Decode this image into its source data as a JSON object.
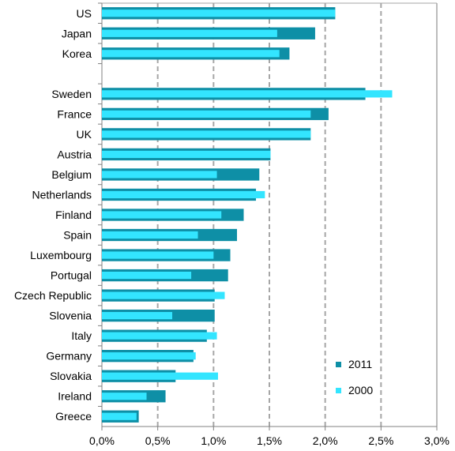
{
  "chart_data": {
    "type": "bar",
    "orientation": "horizontal",
    "categories": [
      "US",
      "Japan",
      "Korea",
      "",
      "Sweden",
      "France",
      "UK",
      "Austria",
      "Belgium",
      "Netherlands",
      "Finland",
      "Spain",
      "Luxembourg",
      "Portugal",
      "Czech Republic",
      "Slovenia",
      "Italy",
      "Germany",
      "Slovakia",
      "Ireland",
      "Greece"
    ],
    "series": [
      {
        "name": "2011",
        "color": "#0e8fa6",
        "values": [
          2.09,
          1.91,
          1.68,
          null,
          2.36,
          2.03,
          1.87,
          1.51,
          1.41,
          1.38,
          1.27,
          1.21,
          1.15,
          1.13,
          1.01,
          1.01,
          0.94,
          0.82,
          0.66,
          0.57,
          0.33
        ]
      },
      {
        "name": "2000",
        "color": "#33e5ff",
        "values": [
          2.09,
          1.57,
          1.59,
          null,
          2.6,
          1.87,
          1.87,
          1.51,
          1.03,
          1.46,
          1.07,
          0.86,
          1.0,
          0.8,
          1.1,
          0.63,
          1.03,
          0.84,
          1.04,
          0.4,
          0.31
        ]
      }
    ],
    "xlim": [
      0,
      3.0
    ],
    "x_ticks": [
      "0,0%",
      "0,5%",
      "1,0%",
      "1,5%",
      "2,0%",
      "2,5%",
      "3,0%"
    ],
    "gridlines": "vertical-dashed",
    "legend_position": "bottom-right"
  }
}
